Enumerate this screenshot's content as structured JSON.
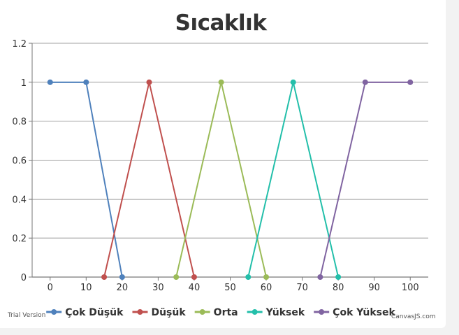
{
  "chart_data": {
    "type": "line",
    "title": "Sıcaklık",
    "xlim": [
      -5,
      105
    ],
    "ylim": [
      0,
      1.2
    ],
    "x_ticks": [
      0,
      10,
      20,
      30,
      40,
      50,
      60,
      70,
      80,
      90,
      100
    ],
    "y_ticks": [
      0,
      0.2,
      0.4,
      0.6,
      0.8,
      1,
      1.2
    ],
    "grid": "horizontal",
    "legend_position": "bottom",
    "series": [
      {
        "name": "Çok Düşük",
        "color": "#4f81bc",
        "points": [
          [
            0,
            1
          ],
          [
            10,
            1
          ],
          [
            20,
            0
          ]
        ]
      },
      {
        "name": "Düşük",
        "color": "#c0504e",
        "points": [
          [
            15,
            0
          ],
          [
            27.5,
            1
          ],
          [
            40,
            0
          ]
        ]
      },
      {
        "name": "Orta",
        "color": "#9bbb58",
        "points": [
          [
            35,
            0
          ],
          [
            47.5,
            1
          ],
          [
            60,
            0
          ]
        ]
      },
      {
        "name": "Yüksek",
        "color": "#23bfaa",
        "points": [
          [
            55,
            0
          ],
          [
            67.5,
            1
          ],
          [
            80,
            0
          ]
        ]
      },
      {
        "name": "Çok Yüksek",
        "color": "#8064a1",
        "points": [
          [
            75,
            0
          ],
          [
            87.5,
            1
          ],
          [
            100,
            1
          ]
        ]
      }
    ]
  },
  "credits": {
    "trial": "Trial Version",
    "brand": "CanvasJS.com"
  }
}
